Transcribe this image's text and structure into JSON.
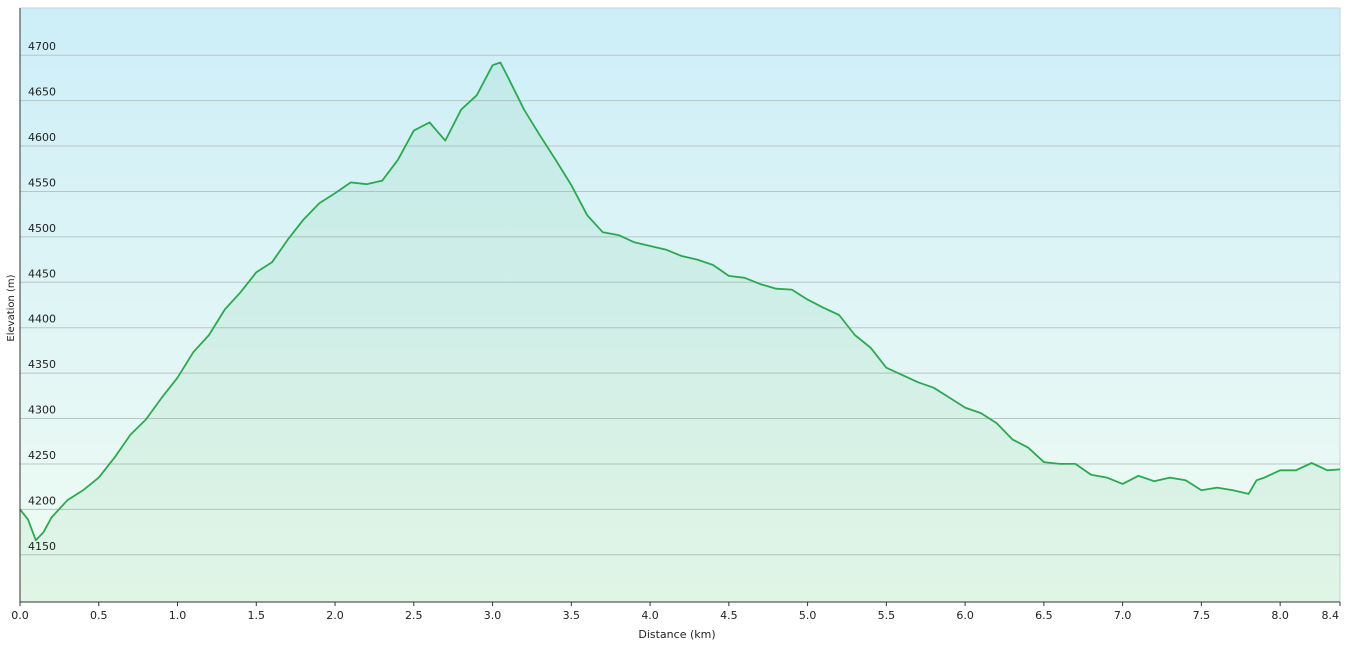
{
  "chart_data": {
    "type": "area",
    "x_label": "Distance  (km)",
    "y_label": "Elevation (m)",
    "x": [
      0,
      0.05,
      0.1,
      0.15,
      0.2,
      0.3,
      0.4,
      0.5,
      0.6,
      0.7,
      0.8,
      0.9,
      1.0,
      1.1,
      1.2,
      1.3,
      1.4,
      1.5,
      1.6,
      1.7,
      1.8,
      1.9,
      2.0,
      2.1,
      2.2,
      2.3,
      2.4,
      2.5,
      2.6,
      2.7,
      2.8,
      2.9,
      3.0,
      3.05,
      3.1,
      3.2,
      3.3,
      3.4,
      3.5,
      3.6,
      3.7,
      3.8,
      3.9,
      4.0,
      4.1,
      4.2,
      4.3,
      4.4,
      4.5,
      4.6,
      4.7,
      4.8,
      4.9,
      5.0,
      5.1,
      5.2,
      5.3,
      5.4,
      5.5,
      5.6,
      5.7,
      5.8,
      5.9,
      6.0,
      6.1,
      6.2,
      6.3,
      6.4,
      6.5,
      6.6,
      6.7,
      6.8,
      6.9,
      7.0,
      7.1,
      7.2,
      7.3,
      7.4,
      7.5,
      7.6,
      7.7,
      7.8,
      7.85,
      7.9,
      8.0,
      8.1,
      8.2,
      8.3,
      8.38
    ],
    "values": [
      4200,
      4189,
      4166,
      4175,
      4191,
      4210,
      4221,
      4235,
      4257,
      4282,
      4299,
      4323,
      4345,
      4373,
      4392,
      4420,
      4439,
      4461,
      4472,
      4497,
      4519,
      4537,
      4548,
      4560,
      4558,
      4562,
      4585,
      4617,
      4626,
      4606,
      4640,
      4656,
      4689,
      4692,
      4675,
      4640,
      4612,
      4585,
      4557,
      4524,
      4505,
      4502,
      4494,
      4490,
      4486,
      4479,
      4475,
      4469,
      4457,
      4455,
      4448,
      4443,
      4442,
      4431,
      4422,
      4414,
      4392,
      4378,
      4356,
      4348,
      4340,
      4334,
      4323,
      4312,
      4306,
      4295,
      4277,
      4268,
      4252,
      4250,
      4250,
      4238,
      4235,
      4228,
      4237,
      4231,
      4235,
      4232,
      4221,
      4224,
      4221,
      4217,
      4232,
      4235,
      4243,
      4243,
      4251,
      4243,
      4244
    ],
    "color": "#2ca94f",
    "xlim": [
      0,
      8.38
    ],
    "ylim": [
      4098,
      4752
    ],
    "xticks": [
      {
        "value": 0,
        "label": "0.0"
      },
      0.5,
      {
        "value": 1,
        "label": "1.0"
      },
      1.5,
      {
        "value": 2,
        "label": "2.0"
      },
      2.5,
      {
        "value": 3,
        "label": "3.0"
      },
      3.5,
      {
        "value": 4,
        "label": "4.0"
      },
      4.5,
      {
        "value": 5,
        "label": "5.0"
      },
      5.5,
      {
        "value": 6,
        "label": "6.0"
      },
      6.5,
      {
        "value": 7,
        "label": "7.0"
      },
      7.5,
      {
        "value": 8,
        "label": "8.0"
      },
      {
        "value": 8.38,
        "label": "8.4"
      }
    ],
    "yticks": [
      4150,
      4200,
      4250,
      4300,
      4350,
      4400,
      4450,
      4500,
      4550,
      4600,
      4650,
      4700
    ],
    "grid": true
  }
}
